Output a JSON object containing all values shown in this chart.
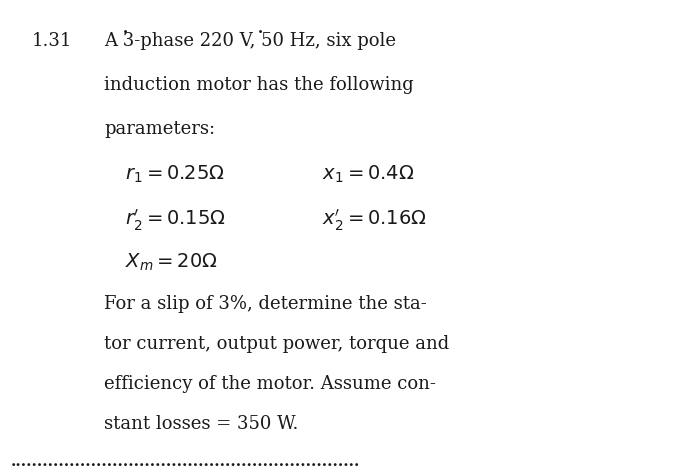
{
  "bg_color": "#ffffff",
  "text_color": "#1a1a1a",
  "problem_number": "1.31",
  "line1": "A 3-phase 220 V, 50 Hz, six pole",
  "line2": "induction motor has the following",
  "line3": "parameters:",
  "param1_left": "$r_1 = 0.25\\Omega$",
  "param1_right": "$x_1 = 0.4\\Omega$",
  "param2_left": "$r_2^{\\prime} = 0.15\\Omega$",
  "param2_right": "$x_2^{\\prime} = 0.16\\Omega$",
  "param3": "$X_m = 20\\Omega$",
  "body_line1": "For a slip of 3%, determine the sta-",
  "body_line2": "tor current, output power, torque and",
  "body_line3": "efficiency of the motor. Assume con-",
  "body_line4": "stant losses = 350 W.",
  "dot_line": ".................................................................",
  "font_size_number": 13,
  "font_size_text": 13,
  "font_size_params": 14,
  "font_size_dots": 11
}
